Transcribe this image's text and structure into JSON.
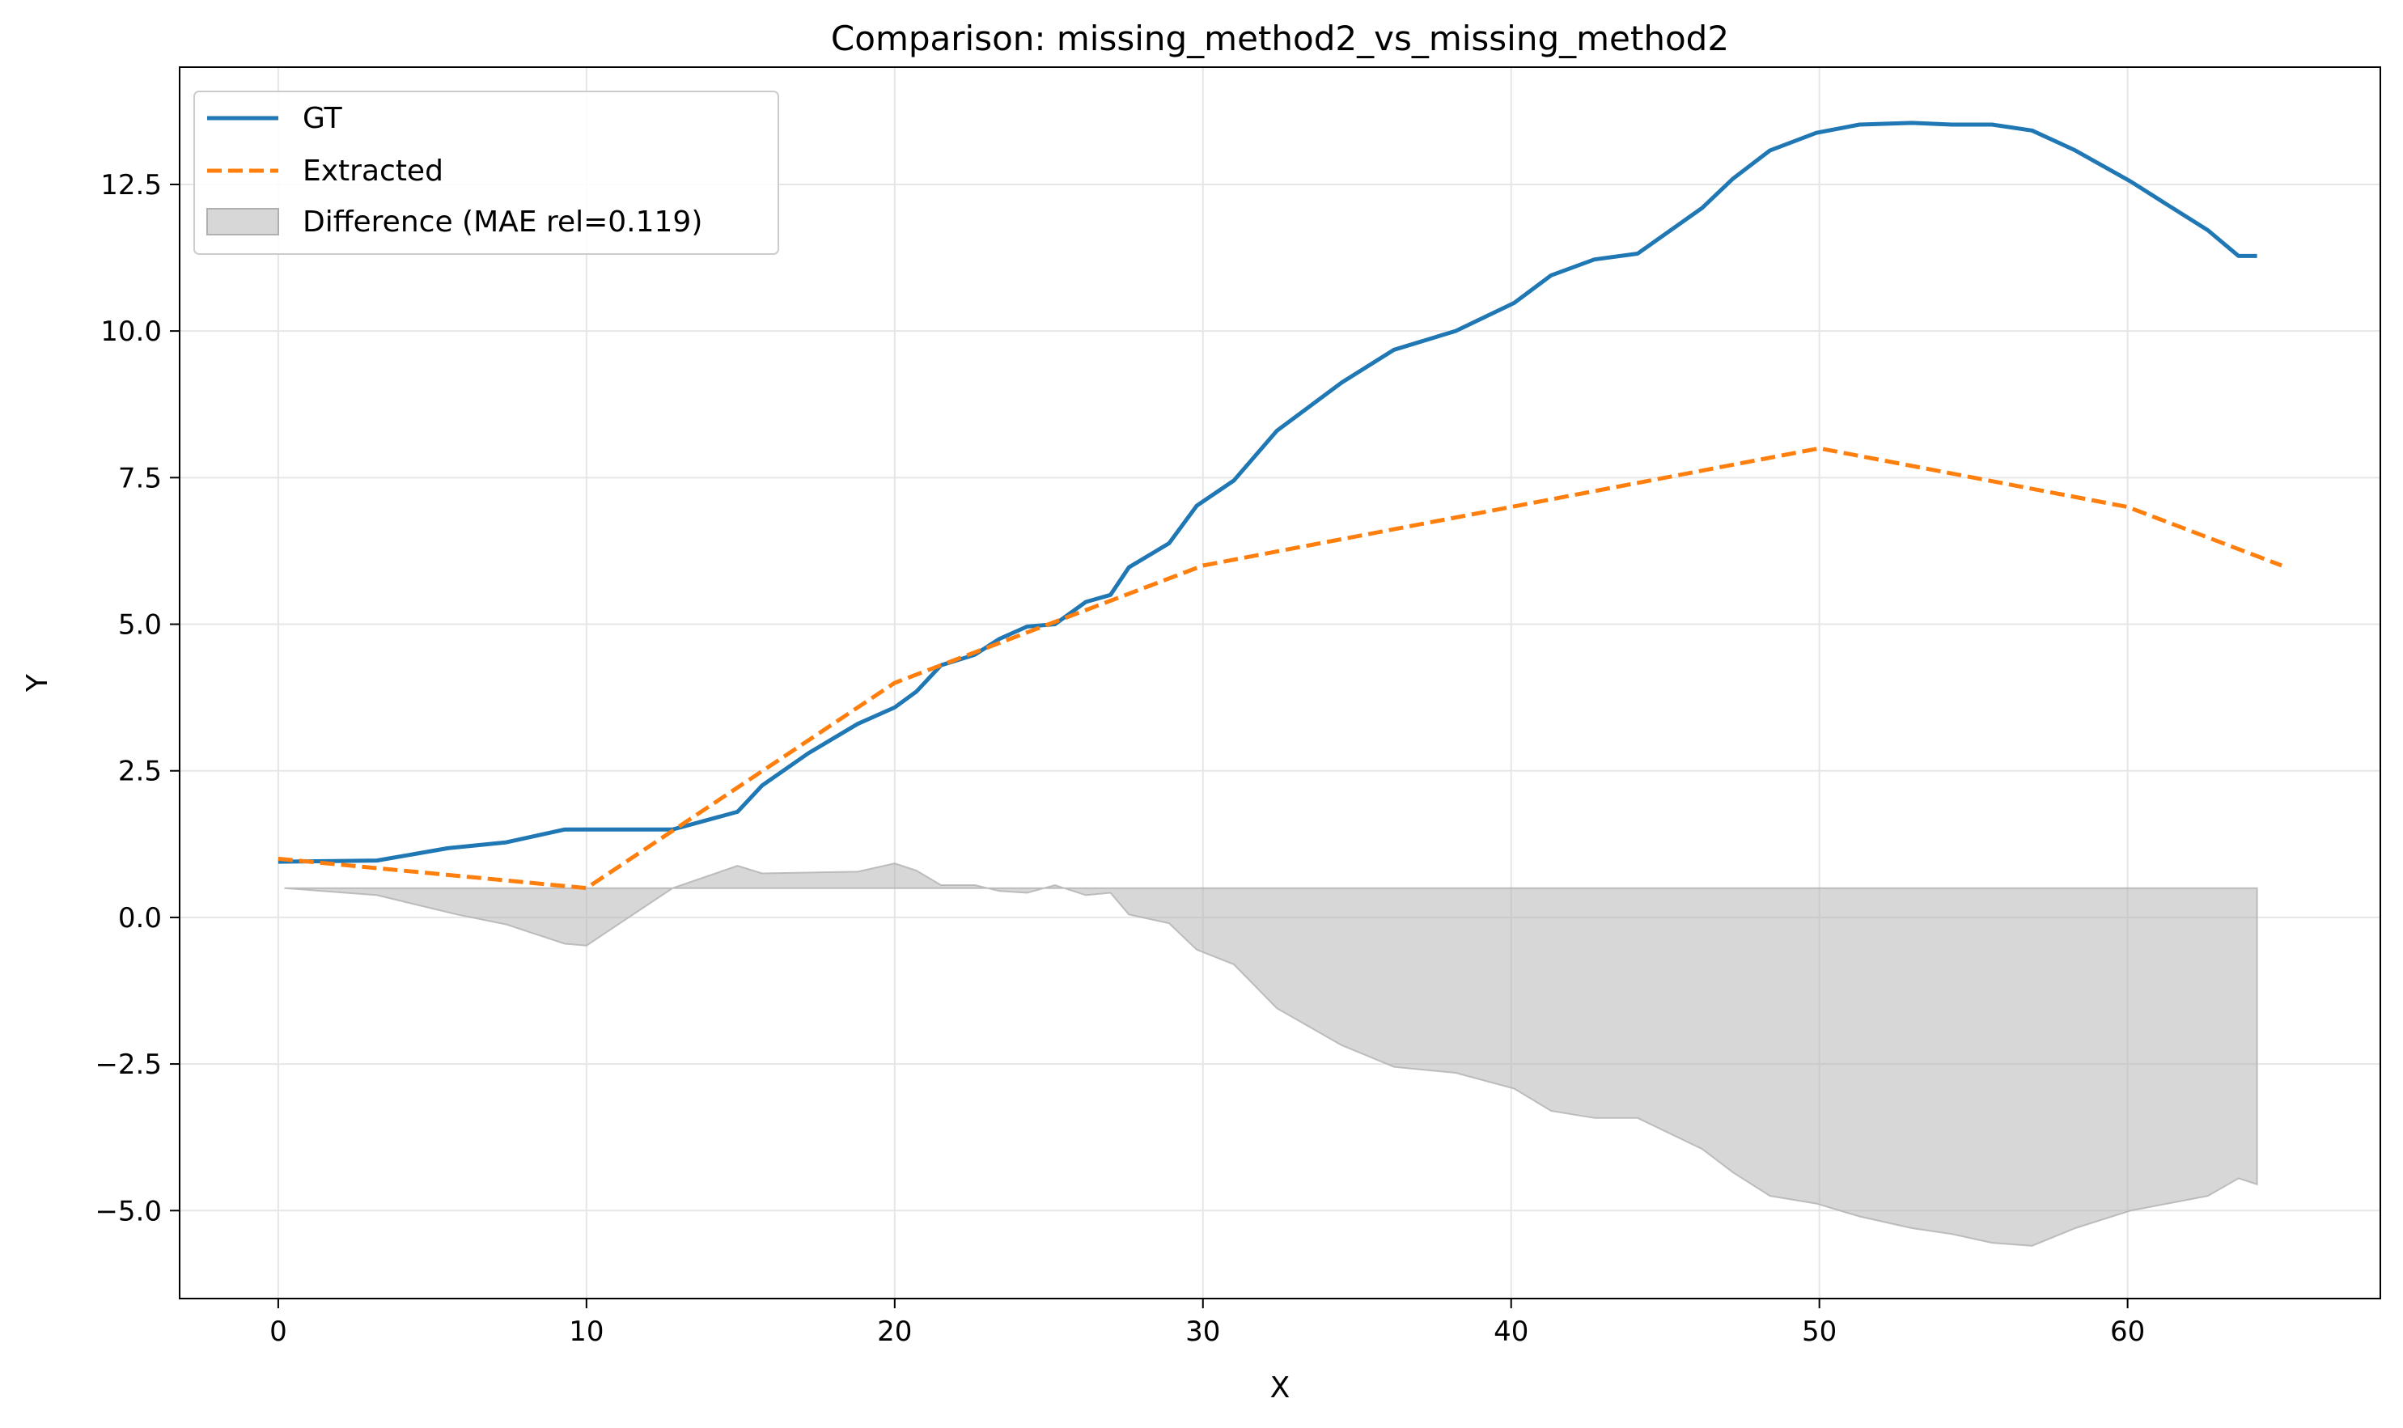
{
  "chart_data": {
    "type": "line",
    "title": "Comparison: missing_method2_vs_missing_method2",
    "xlabel": "X",
    "ylabel": "Y",
    "xlim": [
      -3.2,
      68.2
    ],
    "ylim": [
      -6.5,
      14.5
    ],
    "xticks": [
      0,
      10,
      20,
      30,
      40,
      50,
      60
    ],
    "yticks": [
      -5.0,
      -2.5,
      0.0,
      2.5,
      5.0,
      7.5,
      10.0,
      12.5
    ],
    "ytick_labels": [
      "−5.0",
      "−2.5",
      "0.0",
      "2.5",
      "5.0",
      "7.5",
      "10.0",
      "12.5"
    ],
    "grid": true,
    "legend_position": "top-left",
    "series": [
      {
        "name": "GT",
        "color": "#1f77b4",
        "style": "solid",
        "points": [
          [
            0,
            0.95
          ],
          [
            3.2,
            0.97
          ],
          [
            5.5,
            1.18
          ],
          [
            7.4,
            1.28
          ],
          [
            9.3,
            1.5
          ],
          [
            11.0,
            1.5
          ],
          [
            12.8,
            1.5
          ],
          [
            14.9,
            1.8
          ],
          [
            15.7,
            2.25
          ],
          [
            17.2,
            2.8
          ],
          [
            18.8,
            3.3
          ],
          [
            20.0,
            3.58
          ],
          [
            20.7,
            3.85
          ],
          [
            21.5,
            4.3
          ],
          [
            22.6,
            4.48
          ],
          [
            23.4,
            4.75
          ],
          [
            24.3,
            4.96
          ],
          [
            25.2,
            5.0
          ],
          [
            26.2,
            5.38
          ],
          [
            27.0,
            5.5
          ],
          [
            27.6,
            5.97
          ],
          [
            28.9,
            6.38
          ],
          [
            29.8,
            7.02
          ],
          [
            31.0,
            7.45
          ],
          [
            32.4,
            8.3
          ],
          [
            34.5,
            9.12
          ],
          [
            36.2,
            9.68
          ],
          [
            38.2,
            10.0
          ],
          [
            40.1,
            10.48
          ],
          [
            41.3,
            10.95
          ],
          [
            42.7,
            11.22
          ],
          [
            44.1,
            11.32
          ],
          [
            46.2,
            12.1
          ],
          [
            47.2,
            12.6
          ],
          [
            48.4,
            13.08
          ],
          [
            49.9,
            13.38
          ],
          [
            51.3,
            13.52
          ],
          [
            53.0,
            13.55
          ],
          [
            54.3,
            13.52
          ],
          [
            55.6,
            13.52
          ],
          [
            56.9,
            13.42
          ],
          [
            58.3,
            13.08
          ],
          [
            60.1,
            12.55
          ],
          [
            61.3,
            12.15
          ],
          [
            62.6,
            11.72
          ],
          [
            63.6,
            11.28
          ],
          [
            64.2,
            11.28
          ]
        ]
      },
      {
        "name": "Extracted",
        "color": "#ff7f0e",
        "style": "dashed",
        "points": [
          [
            0,
            1.0
          ],
          [
            10.0,
            0.5
          ],
          [
            20.0,
            4.0
          ],
          [
            30.0,
            6.0
          ],
          [
            40.0,
            7.0
          ],
          [
            50.0,
            8.0
          ],
          [
            60.0,
            7.0
          ],
          [
            65.0,
            6.0
          ]
        ]
      },
      {
        "name": "Difference (MAE rel=0.119)",
        "color": "#b0b0b0",
        "style": "fill",
        "baseline": 0.5,
        "points": [
          [
            0.2,
            0.5
          ],
          [
            3.2,
            0.38
          ],
          [
            5.8,
            0.05
          ],
          [
            7.4,
            -0.12
          ],
          [
            9.3,
            -0.45
          ],
          [
            10.0,
            -0.48
          ],
          [
            11.8,
            0.15
          ],
          [
            12.8,
            0.5
          ],
          [
            14.9,
            0.88
          ],
          [
            15.7,
            0.75
          ],
          [
            18.8,
            0.78
          ],
          [
            20.0,
            0.92
          ],
          [
            20.7,
            0.8
          ],
          [
            21.5,
            0.55
          ],
          [
            22.6,
            0.55
          ],
          [
            23.4,
            0.45
          ],
          [
            24.3,
            0.42
          ],
          [
            25.2,
            0.55
          ],
          [
            26.2,
            0.38
          ],
          [
            27.0,
            0.42
          ],
          [
            27.6,
            0.05
          ],
          [
            28.9,
            -0.1
          ],
          [
            29.8,
            -0.55
          ],
          [
            31.0,
            -0.8
          ],
          [
            32.4,
            -1.55
          ],
          [
            34.5,
            -2.18
          ],
          [
            36.2,
            -2.55
          ],
          [
            38.2,
            -2.65
          ],
          [
            40.1,
            -2.92
          ],
          [
            41.3,
            -3.3
          ],
          [
            42.7,
            -3.42
          ],
          [
            44.1,
            -3.42
          ],
          [
            46.2,
            -3.95
          ],
          [
            47.2,
            -4.35
          ],
          [
            48.4,
            -4.75
          ],
          [
            49.9,
            -4.88
          ],
          [
            51.3,
            -5.1
          ],
          [
            53.0,
            -5.3
          ],
          [
            54.3,
            -5.4
          ],
          [
            55.6,
            -5.55
          ],
          [
            56.9,
            -5.6
          ],
          [
            58.3,
            -5.3
          ],
          [
            60.1,
            -5.0
          ],
          [
            61.3,
            -4.88
          ],
          [
            62.6,
            -4.75
          ],
          [
            63.6,
            -4.45
          ],
          [
            64.2,
            -4.55
          ]
        ]
      }
    ]
  }
}
